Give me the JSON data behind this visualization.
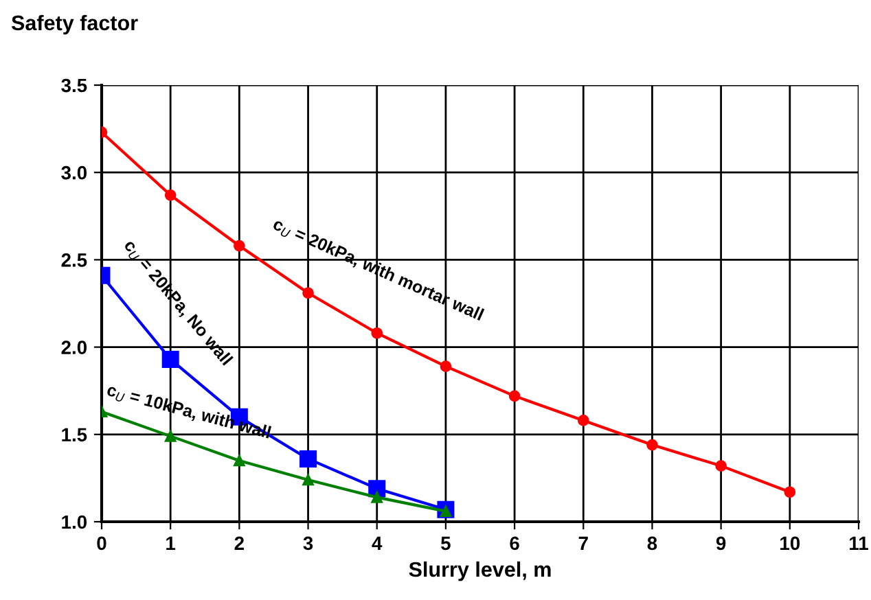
{
  "chart_data": {
    "type": "line",
    "xlabel": "Slurry level, m",
    "ylabel": "Safety factor",
    "xlim": [
      0,
      11
    ],
    "xticks": [
      0,
      1,
      2,
      3,
      4,
      5,
      6,
      7,
      8,
      9,
      10,
      11
    ],
    "ylim": [
      1.0,
      3.5
    ],
    "yticks": [
      {
        "value": 1.0,
        "label": "1.0"
      },
      {
        "value": 1.5,
        "label": "1.5"
      },
      {
        "value": 2.0,
        "label": "2.0"
      },
      {
        "value": 2.5,
        "label": "2.5"
      },
      {
        "value": 3.0,
        "label": "3.0"
      },
      {
        "value": 3.5,
        "label": "3.5"
      }
    ],
    "grid": true,
    "legend": false,
    "line_style": "solid",
    "series": [
      {
        "color": "#ff0000",
        "marker": "circle",
        "x": [
          0,
          1,
          2,
          3,
          4,
          5,
          6,
          7,
          8,
          9,
          10
        ],
        "values": [
          3.23,
          2.87,
          2.58,
          2.31,
          2.08,
          1.89,
          1.72,
          1.58,
          1.44,
          1.32,
          1.17
        ]
      },
      {
        "color": "#0000ff",
        "marker": "square",
        "x": [
          0,
          1,
          2,
          3,
          4,
          5
        ],
        "values": [
          2.41,
          1.93,
          1.6,
          1.36,
          1.19,
          1.07
        ]
      },
      {
        "color": "#008000",
        "marker": "triangle",
        "x": [
          0,
          1,
          2,
          3,
          4,
          5
        ],
        "values": [
          1.63,
          1.49,
          1.35,
          1.24,
          1.14,
          1.06
        ]
      }
    ],
    "annotations": [
      "c$_{U}$ = 20kPa, with mortar wall",
      "c$_{U}$ = 20kPa, No wall",
      "c$_{U}$ = 10kPa, with wall"
    ]
  }
}
